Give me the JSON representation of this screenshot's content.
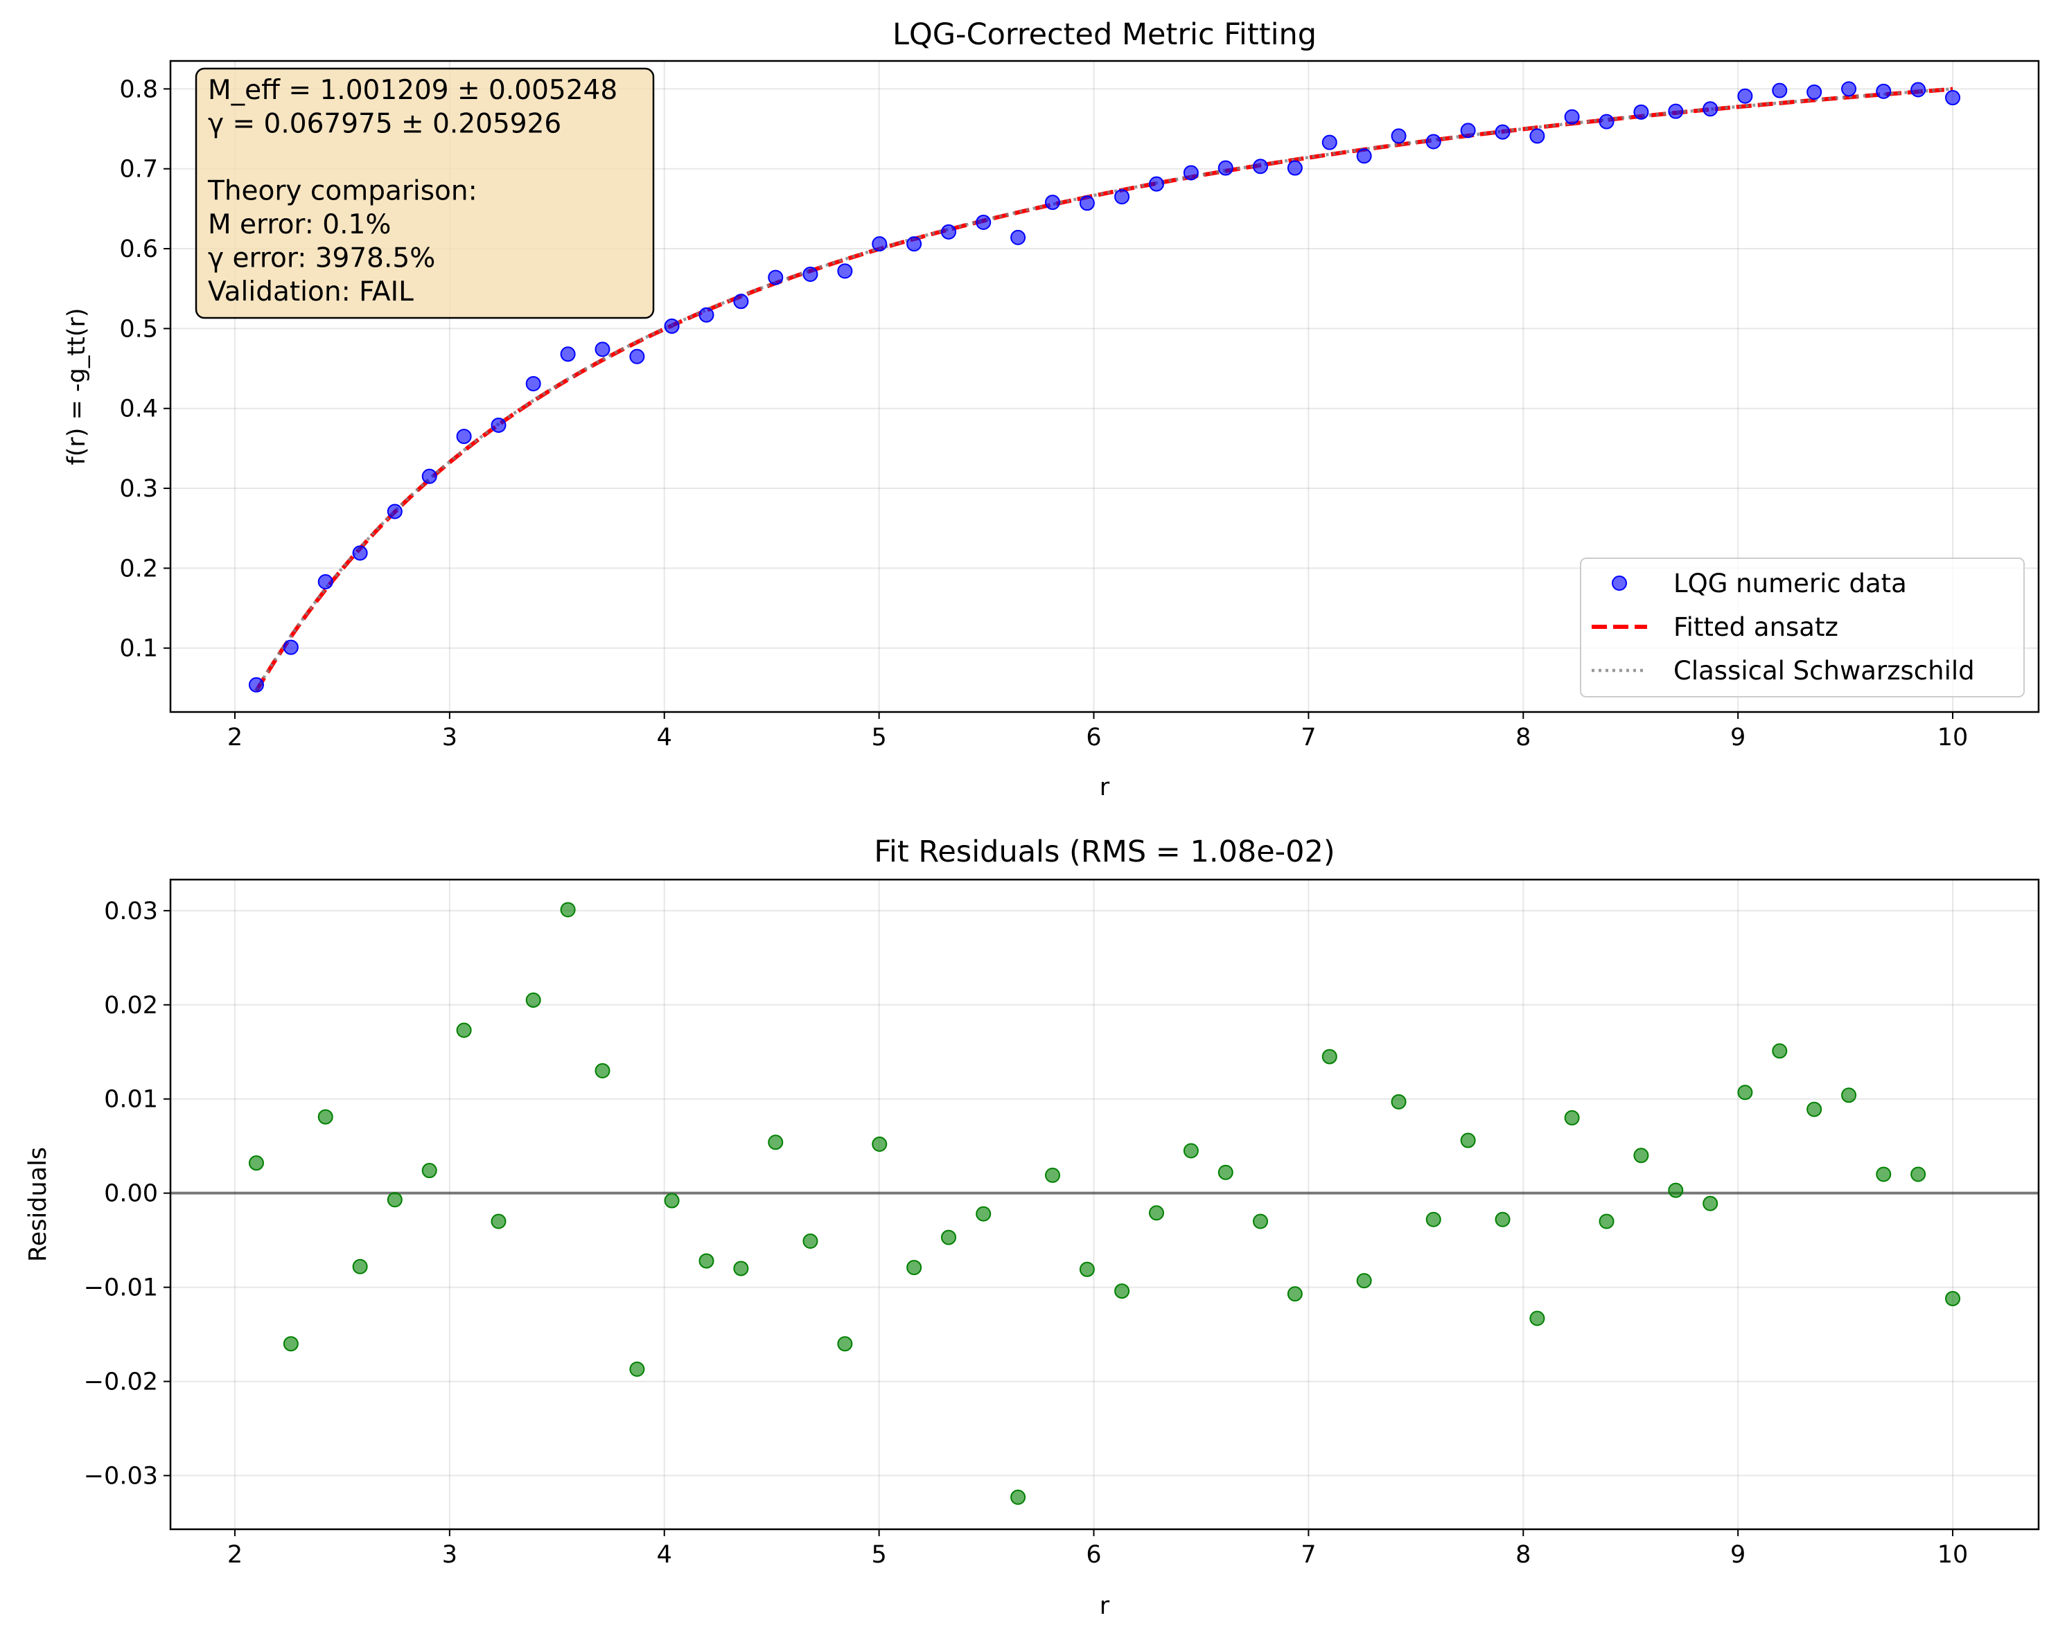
{
  "chart_data": [
    {
      "type": "scatter",
      "title": "LQG-Corrected Metric Fitting",
      "xlabel": "r",
      "ylabel": "f(r) = -g_tt(r)",
      "xlim": [
        1.7,
        10.4
      ],
      "ylim": [
        0.02,
        0.835
      ],
      "xticks": [
        2,
        3,
        4,
        5,
        6,
        7,
        8,
        9,
        10
      ],
      "yticks": [
        0.1,
        0.2,
        0.3,
        0.4,
        0.5,
        0.6,
        0.7,
        0.8
      ],
      "grid": true,
      "legend_position": "lower-right",
      "annotation": [
        "M_eff = 1.001209 ± 0.005248",
        "γ = 0.067975 ± 0.205926",
        "",
        "Theory comparison:",
        "M error: 0.1%",
        "γ error: 3978.5%",
        "Validation: FAIL"
      ],
      "series": [
        {
          "name": "LQG numeric data",
          "kind": "scatter",
          "color": "#0000ff",
          "x": [
            2.1,
            2.261,
            2.422,
            2.583,
            2.745,
            2.906,
            3.067,
            3.228,
            3.39,
            3.551,
            3.712,
            3.873,
            4.035,
            4.196,
            4.357,
            4.518,
            4.68,
            4.841,
            5.002,
            5.163,
            5.324,
            5.486,
            5.647,
            5.808,
            5.969,
            6.131,
            6.292,
            6.453,
            6.614,
            6.776,
            6.937,
            7.098,
            7.259,
            7.42,
            7.582,
            7.743,
            7.904,
            8.065,
            8.227,
            8.388,
            8.549,
            8.71,
            8.871,
            9.033,
            9.194,
            9.355,
            9.516,
            9.678,
            9.839,
            10.0
          ],
          "y": [
            0.054,
            0.101,
            0.183,
            0.219,
            0.271,
            0.315,
            0.365,
            0.379,
            0.431,
            0.468,
            0.474,
            0.465,
            0.503,
            0.517,
            0.534,
            0.564,
            0.568,
            0.572,
            0.606,
            0.606,
            0.621,
            0.633,
            0.614,
            0.658,
            0.657,
            0.665,
            0.681,
            0.695,
            0.701,
            0.703,
            0.701,
            0.733,
            0.716,
            0.741,
            0.734,
            0.748,
            0.746,
            0.741,
            0.765,
            0.759,
            0.771,
            0.772,
            0.775,
            0.791,
            0.798,
            0.796,
            0.8,
            0.797,
            0.799,
            0.789
          ]
        },
        {
          "name": "Fitted ansatz",
          "kind": "line",
          "style": "dashed",
          "color": "#ff0000",
          "function": "1 - 2M/r",
          "M": 1.001209
        },
        {
          "name": "Classical Schwarzschild",
          "kind": "line",
          "style": "dotted",
          "color": "#808080",
          "function": "1 - 2M/r",
          "M": 1.0
        }
      ]
    },
    {
      "type": "scatter",
      "title": "Fit Residuals (RMS = 1.08e-02)",
      "xlabel": "r",
      "ylabel": "Residuals",
      "xlim": [
        1.7,
        10.4
      ],
      "ylim": [
        -0.0357,
        0.0333
      ],
      "xticks": [
        2,
        3,
        4,
        5,
        6,
        7,
        8,
        9,
        10
      ],
      "yticks": [
        -0.03,
        -0.02,
        -0.01,
        0.0,
        0.01,
        0.02,
        0.03
      ],
      "ytick_labels": [
        "−0.03",
        "−0.02",
        "−0.01",
        "0.00",
        "0.01",
        "0.02",
        "0.03"
      ],
      "grid": true,
      "reference_line": 0,
      "series": [
        {
          "kind": "scatter",
          "color": "#008000",
          "x": [
            2.1,
            2.261,
            2.422,
            2.583,
            2.745,
            2.906,
            3.067,
            3.228,
            3.39,
            3.551,
            3.712,
            3.873,
            4.035,
            4.196,
            4.357,
            4.518,
            4.68,
            4.841,
            5.002,
            5.163,
            5.324,
            5.486,
            5.647,
            5.808,
            5.969,
            6.131,
            6.292,
            6.453,
            6.614,
            6.776,
            6.937,
            7.098,
            7.259,
            7.42,
            7.582,
            7.743,
            7.904,
            8.065,
            8.227,
            8.388,
            8.549,
            8.71,
            8.871,
            9.033,
            9.194,
            9.355,
            9.516,
            9.678,
            9.839,
            10.0
          ],
          "y": [
            0.0032,
            -0.016,
            0.0081,
            -0.0078,
            -0.0007,
            0.0024,
            0.0173,
            -0.003,
            0.0205,
            0.0301,
            0.013,
            -0.0187,
            -0.0008,
            -0.0072,
            -0.008,
            0.0054,
            -0.0051,
            -0.016,
            0.0052,
            -0.0079,
            -0.0047,
            -0.0022,
            -0.0323,
            0.0019,
            -0.0081,
            -0.0104,
            -0.0021,
            0.0045,
            0.0022,
            -0.003,
            -0.0107,
            0.0145,
            -0.0093,
            0.0097,
            -0.0028,
            0.0056,
            -0.0028,
            -0.0133,
            0.008,
            -0.003,
            0.004,
            0.0003,
            -0.0011,
            0.0107,
            0.0151,
            0.0089,
            0.0104,
            0.002,
            0.002,
            -0.0112
          ]
        }
      ]
    }
  ]
}
